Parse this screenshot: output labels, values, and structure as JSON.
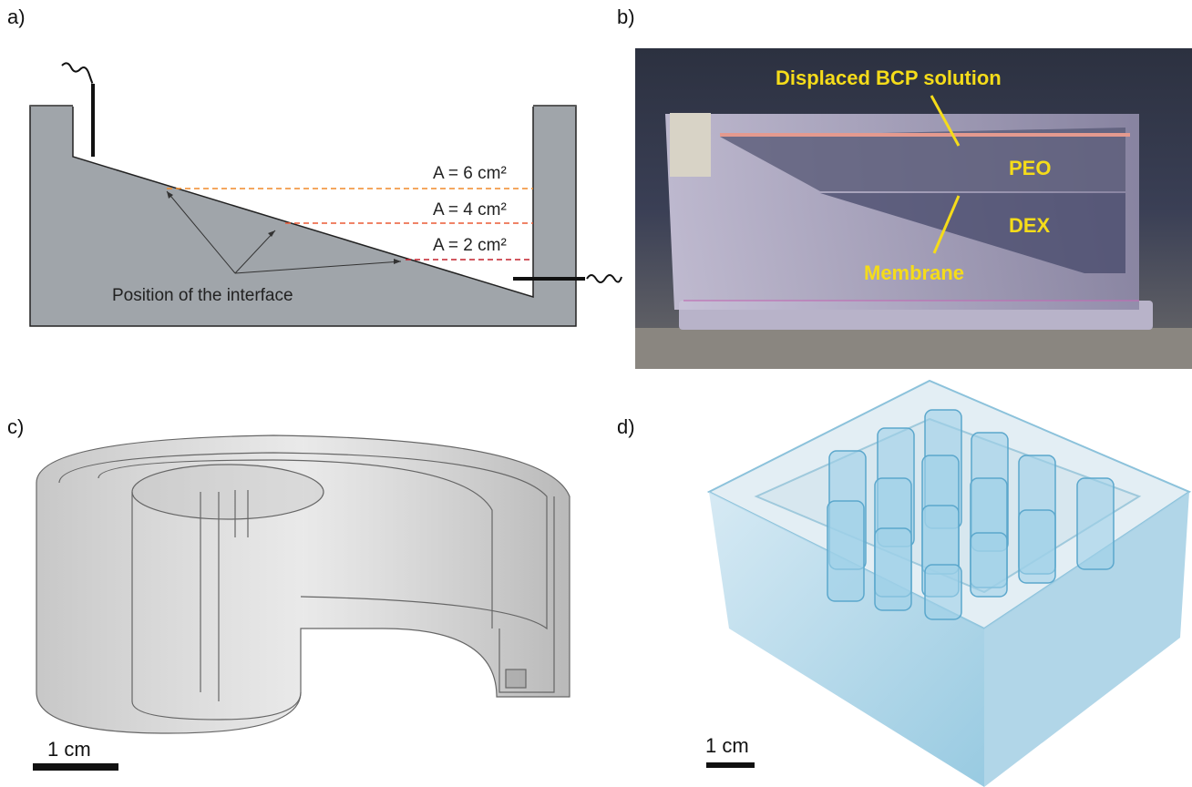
{
  "panels": [
    {
      "label": "a)",
      "areas": [
        "A = 6 cm²",
        "A = 4 cm²",
        "A = 2 cm²"
      ],
      "annotation": "Position of the interface"
    },
    {
      "label": "b)",
      "annotations": [
        "Displaced BCP solution",
        "PEO",
        "DEX",
        "Membrane"
      ]
    },
    {
      "label": "c)",
      "scale_bar": "1 cm"
    },
    {
      "label": "d)",
      "scale_bar": "1 cm"
    }
  ]
}
